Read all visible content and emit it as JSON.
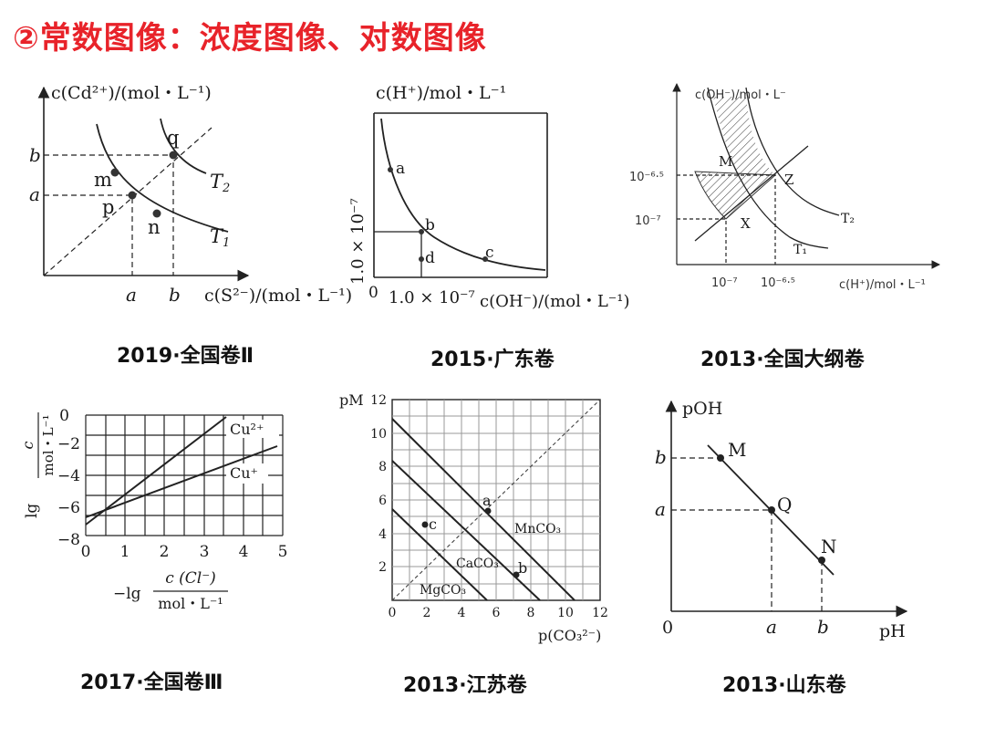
{
  "title": "②常数图像：浓度图像、对数图像",
  "captions": {
    "p1": "2019·全国卷Ⅱ",
    "p2": "2015·广东卷",
    "p3": "2013·全国大纲卷",
    "p4": "2017·全国卷Ⅲ",
    "p5": "2013·江苏卷",
    "p6": "2013·山东卷"
  },
  "p1": {
    "ylabel": "c(Cd²⁺)/(mol・L⁻¹)",
    "xlabel": "c(S²⁻)/(mol・L⁻¹)",
    "tick_b": "b",
    "tick_a": "a",
    "points": {
      "m": "m",
      "p": "p",
      "n": "n",
      "q": "q"
    },
    "curves": {
      "t1": "T",
      "t1_sub": "1",
      "t2": "T",
      "t2_sub": "2"
    }
  },
  "p2": {
    "ylabel": "c(H⁺)/mol・L⁻¹",
    "ytick": "1.0 × 10⁻⁷",
    "xtick": "1.0 × 10⁻⁷",
    "origin": "0",
    "xlabel": "c(OH⁻)/(mol・L⁻¹)",
    "points": {
      "a": "a",
      "b": "b",
      "c": "c",
      "d": "d"
    }
  },
  "p3": {
    "ylabel": "c(OH⁻)/mol・L⁻",
    "xlabel": "c(H⁺)/mol・L⁻¹",
    "ytick_hi": "10⁻⁶·⁵",
    "ytick_lo": "10⁻⁷",
    "xtick_lo": "10⁻⁷",
    "xtick_hi": "10⁻⁶·⁵",
    "points": {
      "m": "M",
      "z": "Z",
      "x": "X"
    },
    "curves": {
      "t1": "T₁",
      "t2": "T₂"
    }
  },
  "p4": {
    "ylabel_lg": "lg",
    "ylabel_num": "c",
    "ylabel_den": "mol・L⁻¹",
    "yticks": [
      "0",
      "−2",
      "−4",
      "−6",
      "−8"
    ],
    "xticks": [
      "0",
      "1",
      "2",
      "3",
      "4",
      "5"
    ],
    "xlabel_prefix": "−lg",
    "xlabel_num": "c (Cl⁻)",
    "xlabel_den": "mol・L⁻¹",
    "series": {
      "cu2": "Cu²⁺",
      "cu1": "Cu⁺"
    }
  },
  "p5": {
    "ylabel": "pM",
    "yticks": [
      "12",
      "10",
      "8",
      "6",
      "4",
      "2"
    ],
    "xticks": [
      "0",
      "2",
      "4",
      "6",
      "8",
      "10",
      "12"
    ],
    "xlabel": "p(CO₃²⁻)",
    "series": {
      "mn": "MnCO₃",
      "ca": "CaCO₃",
      "mg": "MgCO₃"
    },
    "points": {
      "a": "a",
      "b": "b",
      "c": "c"
    }
  },
  "p6": {
    "ylabel": "pOH",
    "xlabel": "pH",
    "origin": "0",
    "ytick_b": "b",
    "ytick_a": "a",
    "xtick_a": "a",
    "xtick_b": "b",
    "points": {
      "m": "M",
      "q": "Q",
      "n": "N"
    }
  }
}
